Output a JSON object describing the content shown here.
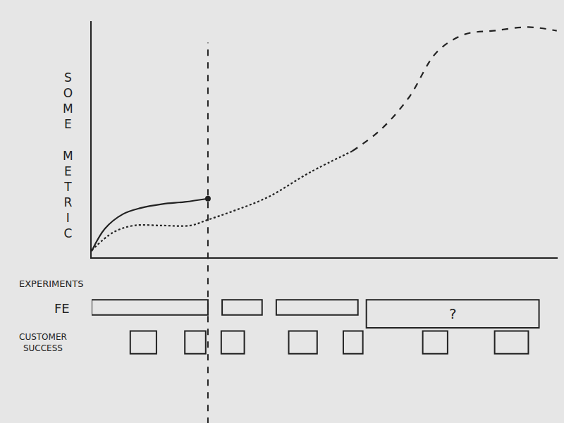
{
  "chart_data": {
    "type": "line",
    "ylabel": "SOME METRIC",
    "color": "#222222",
    "xlim": [
      0,
      105
    ],
    "ylim": [
      0,
      115
    ],
    "xticks": [],
    "yticks": [],
    "tick_labels": false,
    "grid": false,
    "series": [
      {
        "line_style": "solid",
        "marker": "end",
        "x": [
          0,
          3,
          7,
          11,
          16,
          21,
          26.2
        ],
        "values": [
          3,
          14,
          21,
          24,
          26,
          27,
          28.6
        ]
      },
      {
        "line_style": "dotted",
        "x": [
          0,
          4.8,
          9.5,
          15.9,
          22.2,
          26.2,
          31.7,
          39.7,
          49.2,
          58.7
        ],
        "values": [
          3.4,
          12.1,
          15.5,
          15.5,
          15.5,
          18.3,
          22.4,
          29.3,
          41.4,
          51.7
        ]
      },
      {
        "line_style": "dashed",
        "x": [
          58.7,
          65.1,
          71.4,
          77.8,
          84.1,
          90.5,
          98.4,
          104.8
        ],
        "values": [
          51.7,
          62.1,
          77.6,
          100,
          108.6,
          110.3,
          112.1,
          110.3
        ]
      }
    ],
    "vertical_line": {
      "x": 26.2,
      "line_style": "dashed"
    },
    "timeline": {
      "title": "EXPERIMENTS",
      "rows": [
        {
          "label": "FE",
          "spans": [
            [
              0,
              26.2
            ],
            [
              29.4,
              38.4
            ],
            [
              41.6,
              60
            ],
            [
              61.9,
              100.8
            ]
          ],
          "span_labels": [
            null,
            null,
            null,
            "?"
          ]
        },
        {
          "label": "CUSTOMER SUCCESS",
          "spans": [
            [
              8.7,
              14.6
            ],
            [
              21,
              25.7
            ],
            [
              29.2,
              34.4
            ],
            [
              44.4,
              50.8
            ],
            [
              56.7,
              61.1
            ],
            [
              74.6,
              80.2
            ],
            [
              90.8,
              98.4
            ]
          ]
        }
      ]
    }
  }
}
